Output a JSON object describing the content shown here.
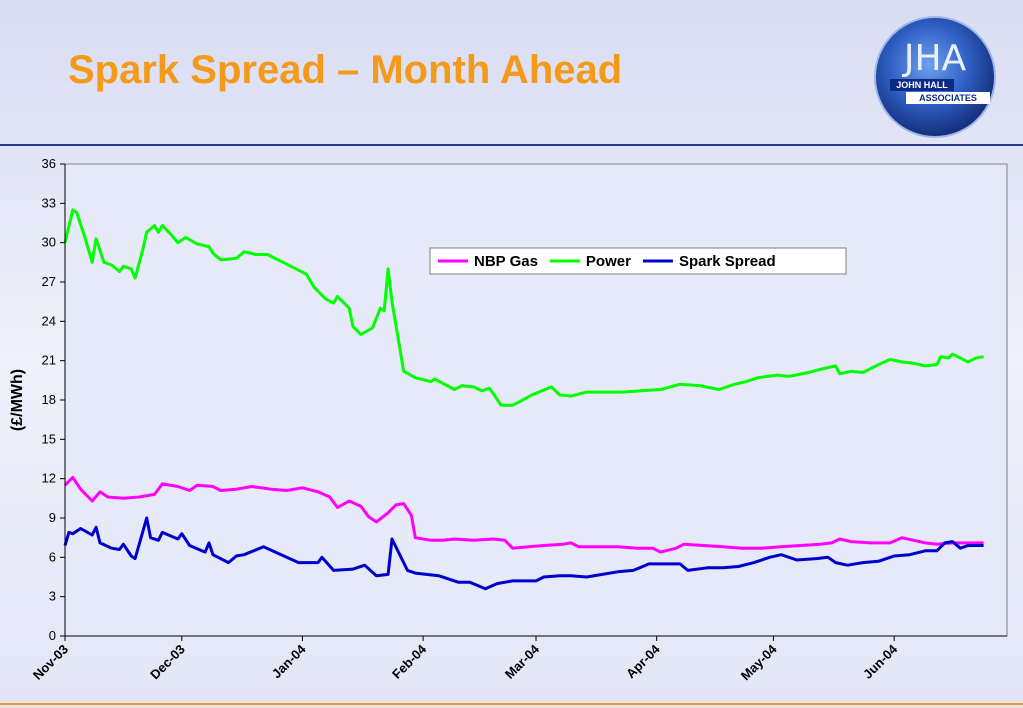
{
  "title": "Spark Spread – Month Ahead",
  "logo": {
    "line1": "JHA",
    "line2": "JOHN HALL",
    "line3": "ASSOCIATES"
  },
  "colors": {
    "title": "#f5991a",
    "rule": "#2c3a8a",
    "gas": "#ff00ff",
    "power": "#00ff00",
    "spark": "#0000cc"
  },
  "chart_data": {
    "type": "line",
    "title": "",
    "xlabel": "",
    "ylabel": "(£/MWh)",
    "ylim": [
      0,
      36
    ],
    "yticks": [
      0,
      3,
      6,
      9,
      12,
      15,
      18,
      21,
      24,
      27,
      30,
      33,
      36
    ],
    "xlim": [
      "2003-11-01",
      "2004-06-30"
    ],
    "xticks": [
      {
        "date": "2003-11-01",
        "label": "Nov-03"
      },
      {
        "date": "2003-12-01",
        "label": "Dec-03"
      },
      {
        "date": "2004-01-01",
        "label": "Jan-04"
      },
      {
        "date": "2004-02-01",
        "label": "Feb-04"
      },
      {
        "date": "2004-03-01",
        "label": "Mar-04"
      },
      {
        "date": "2004-04-01",
        "label": "Apr-04"
      },
      {
        "date": "2004-05-01",
        "label": "May-04"
      },
      {
        "date": "2004-06-01",
        "label": "Jun-04"
      }
    ],
    "legend": "top-right",
    "grid": false,
    "series": [
      {
        "name": "NBP Gas",
        "color": "#ff00ff",
        "points": [
          [
            "2003-11-01",
            11.5
          ],
          [
            "2003-11-03",
            12.1
          ],
          [
            "2003-11-05",
            11.2
          ],
          [
            "2003-11-08",
            10.3
          ],
          [
            "2003-11-10",
            11.0
          ],
          [
            "2003-11-12",
            10.6
          ],
          [
            "2003-11-16",
            10.5
          ],
          [
            "2003-11-20",
            10.6
          ],
          [
            "2003-11-24",
            10.8
          ],
          [
            "2003-11-26",
            11.6
          ],
          [
            "2003-11-30",
            11.4
          ],
          [
            "2003-12-03",
            11.1
          ],
          [
            "2003-12-05",
            11.5
          ],
          [
            "2003-12-09",
            11.4
          ],
          [
            "2003-12-11",
            11.1
          ],
          [
            "2003-12-15",
            11.2
          ],
          [
            "2003-12-19",
            11.4
          ],
          [
            "2003-12-24",
            11.2
          ],
          [
            "2003-12-28",
            11.1
          ],
          [
            "2004-01-01",
            11.3
          ],
          [
            "2004-01-05",
            11.0
          ],
          [
            "2004-01-08",
            10.6
          ],
          [
            "2004-01-10",
            9.8
          ],
          [
            "2004-01-13",
            10.3
          ],
          [
            "2004-01-16",
            9.9
          ],
          [
            "2004-01-18",
            9.1
          ],
          [
            "2004-01-20",
            8.7
          ],
          [
            "2004-01-23",
            9.4
          ],
          [
            "2004-01-25",
            10.0
          ],
          [
            "2004-01-27",
            10.1
          ],
          [
            "2004-01-29",
            9.2
          ],
          [
            "2004-01-30",
            7.5
          ],
          [
            "2004-02-03",
            7.3
          ],
          [
            "2004-02-06",
            7.3
          ],
          [
            "2004-02-09",
            7.4
          ],
          [
            "2004-02-14",
            7.3
          ],
          [
            "2004-02-19",
            7.4
          ],
          [
            "2004-02-22",
            7.3
          ],
          [
            "2004-02-24",
            6.7
          ],
          [
            "2004-02-28",
            6.8
          ],
          [
            "2004-03-03",
            6.9
          ],
          [
            "2004-03-08",
            7.0
          ],
          [
            "2004-03-10",
            7.1
          ],
          [
            "2004-03-12",
            6.8
          ],
          [
            "2004-03-17",
            6.8
          ],
          [
            "2004-03-22",
            6.8
          ],
          [
            "2004-03-27",
            6.7
          ],
          [
            "2004-03-31",
            6.7
          ],
          [
            "2004-04-02",
            6.4
          ],
          [
            "2004-04-06",
            6.7
          ],
          [
            "2004-04-08",
            7.0
          ],
          [
            "2004-04-13",
            6.9
          ],
          [
            "2004-04-18",
            6.8
          ],
          [
            "2004-04-23",
            6.7
          ],
          [
            "2004-04-28",
            6.7
          ],
          [
            "2004-05-03",
            6.8
          ],
          [
            "2004-05-08",
            6.9
          ],
          [
            "2004-05-13",
            7.0
          ],
          [
            "2004-05-16",
            7.1
          ],
          [
            "2004-05-18",
            7.4
          ],
          [
            "2004-05-21",
            7.2
          ],
          [
            "2004-05-26",
            7.1
          ],
          [
            "2004-05-31",
            7.1
          ],
          [
            "2004-06-03",
            7.5
          ],
          [
            "2004-06-06",
            7.3
          ],
          [
            "2004-06-09",
            7.1
          ],
          [
            "2004-06-12",
            7.0
          ],
          [
            "2004-06-16",
            7.1
          ],
          [
            "2004-06-20",
            7.1
          ],
          [
            "2004-06-24",
            7.1
          ]
        ]
      },
      {
        "name": "Power",
        "color": "#00ff00",
        "points": [
          [
            "2003-11-01",
            30.0
          ],
          [
            "2003-11-03",
            32.5
          ],
          [
            "2003-11-04",
            32.3
          ],
          [
            "2003-11-06",
            30.5
          ],
          [
            "2003-11-08",
            28.5
          ],
          [
            "2003-11-09",
            30.3
          ],
          [
            "2003-11-11",
            28.5
          ],
          [
            "2003-11-13",
            28.3
          ],
          [
            "2003-11-15",
            27.8
          ],
          [
            "2003-11-16",
            28.2
          ],
          [
            "2003-11-18",
            28.0
          ],
          [
            "2003-11-19",
            27.3
          ],
          [
            "2003-11-21",
            29.5
          ],
          [
            "2003-11-22",
            30.8
          ],
          [
            "2003-11-24",
            31.3
          ],
          [
            "2003-11-25",
            30.8
          ],
          [
            "2003-11-26",
            31.3
          ],
          [
            "2003-11-28",
            30.7
          ],
          [
            "2003-11-30",
            30.0
          ],
          [
            "2003-12-02",
            30.4
          ],
          [
            "2003-12-05",
            29.9
          ],
          [
            "2003-12-08",
            29.7
          ],
          [
            "2003-12-09",
            29.2
          ],
          [
            "2003-12-11",
            28.7
          ],
          [
            "2003-12-15",
            28.8
          ],
          [
            "2003-12-17",
            29.3
          ],
          [
            "2003-12-20",
            29.1
          ],
          [
            "2003-12-23",
            29.1
          ],
          [
            "2003-12-27",
            28.5
          ],
          [
            "2003-12-31",
            27.9
          ],
          [
            "2004-01-02",
            27.6
          ],
          [
            "2004-01-04",
            26.6
          ],
          [
            "2004-01-07",
            25.7
          ],
          [
            "2004-01-09",
            25.4
          ],
          [
            "2004-01-10",
            25.9
          ],
          [
            "2004-01-13",
            25.0
          ],
          [
            "2004-01-14",
            23.6
          ],
          [
            "2004-01-16",
            23.0
          ],
          [
            "2004-01-19",
            23.5
          ],
          [
            "2004-01-21",
            25.0
          ],
          [
            "2004-01-22",
            24.8
          ],
          [
            "2004-01-23",
            28.0
          ],
          [
            "2004-01-24",
            25.5
          ],
          [
            "2004-01-27",
            20.2
          ],
          [
            "2004-01-30",
            19.7
          ],
          [
            "2004-02-03",
            19.4
          ],
          [
            "2004-02-04",
            19.6
          ],
          [
            "2004-02-09",
            18.8
          ],
          [
            "2004-02-11",
            19.1
          ],
          [
            "2004-02-14",
            19.0
          ],
          [
            "2004-02-16",
            18.7
          ],
          [
            "2004-02-18",
            18.9
          ],
          [
            "2004-02-19",
            18.5
          ],
          [
            "2004-02-21",
            17.6
          ],
          [
            "2004-02-24",
            17.6
          ],
          [
            "2004-02-26",
            17.9
          ],
          [
            "2004-02-29",
            18.4
          ],
          [
            "2004-03-05",
            19.0
          ],
          [
            "2004-03-07",
            18.4
          ],
          [
            "2004-03-10",
            18.3
          ],
          [
            "2004-03-14",
            18.6
          ],
          [
            "2004-03-18",
            18.6
          ],
          [
            "2004-03-23",
            18.6
          ],
          [
            "2004-03-28",
            18.7
          ],
          [
            "2004-04-02",
            18.8
          ],
          [
            "2004-04-07",
            19.2
          ],
          [
            "2004-04-12",
            19.1
          ],
          [
            "2004-04-17",
            18.8
          ],
          [
            "2004-04-21",
            19.2
          ],
          [
            "2004-04-24",
            19.4
          ],
          [
            "2004-04-27",
            19.7
          ],
          [
            "2004-05-02",
            19.9
          ],
          [
            "2004-05-05",
            19.8
          ],
          [
            "2004-05-10",
            20.1
          ],
          [
            "2004-05-14",
            20.4
          ],
          [
            "2004-05-17",
            20.6
          ],
          [
            "2004-05-18",
            20.0
          ],
          [
            "2004-05-21",
            20.2
          ],
          [
            "2004-05-24",
            20.1
          ],
          [
            "2004-05-28",
            20.7
          ],
          [
            "2004-05-31",
            21.1
          ],
          [
            "2004-06-03",
            20.9
          ],
          [
            "2004-06-06",
            20.8
          ],
          [
            "2004-06-09",
            20.6
          ],
          [
            "2004-06-12",
            20.7
          ],
          [
            "2004-06-13",
            21.3
          ],
          [
            "2004-06-15",
            21.2
          ],
          [
            "2004-06-16",
            21.5
          ],
          [
            "2004-06-18",
            21.2
          ],
          [
            "2004-06-20",
            20.9
          ],
          [
            "2004-06-22",
            21.2
          ],
          [
            "2004-06-24",
            21.3
          ]
        ]
      },
      {
        "name": "Spark Spread",
        "color": "#0000cc",
        "points": [
          [
            "2003-11-01",
            6.9
          ],
          [
            "2003-11-02",
            7.9
          ],
          [
            "2003-11-03",
            7.8
          ],
          [
            "2003-11-05",
            8.2
          ],
          [
            "2003-11-08",
            7.7
          ],
          [
            "2003-11-09",
            8.3
          ],
          [
            "2003-11-10",
            7.1
          ],
          [
            "2003-11-13",
            6.7
          ],
          [
            "2003-11-15",
            6.6
          ],
          [
            "2003-11-16",
            7.0
          ],
          [
            "2003-11-18",
            6.1
          ],
          [
            "2003-11-19",
            5.9
          ],
          [
            "2003-11-22",
            9.0
          ],
          [
            "2003-11-23",
            7.5
          ],
          [
            "2003-11-25",
            7.3
          ],
          [
            "2003-11-26",
            7.9
          ],
          [
            "2003-11-30",
            7.4
          ],
          [
            "2003-12-01",
            7.8
          ],
          [
            "2003-12-03",
            6.9
          ],
          [
            "2003-12-07",
            6.4
          ],
          [
            "2003-12-08",
            7.1
          ],
          [
            "2003-12-09",
            6.2
          ],
          [
            "2003-12-13",
            5.6
          ],
          [
            "2003-12-15",
            6.1
          ],
          [
            "2003-12-17",
            6.2
          ],
          [
            "2003-12-22",
            6.8
          ],
          [
            "2003-12-31",
            5.6
          ],
          [
            "2004-01-05",
            5.6
          ],
          [
            "2004-01-06",
            6.0
          ],
          [
            "2004-01-09",
            5.0
          ],
          [
            "2004-01-14",
            5.1
          ],
          [
            "2004-01-17",
            5.4
          ],
          [
            "2004-01-20",
            4.6
          ],
          [
            "2004-01-23",
            4.7
          ],
          [
            "2004-01-24",
            7.4
          ],
          [
            "2004-01-28",
            5.0
          ],
          [
            "2004-01-30",
            4.8
          ],
          [
            "2004-02-05",
            4.6
          ],
          [
            "2004-02-10",
            4.1
          ],
          [
            "2004-02-13",
            4.1
          ],
          [
            "2004-02-17",
            3.6
          ],
          [
            "2004-02-20",
            4.0
          ],
          [
            "2004-02-24",
            4.2
          ],
          [
            "2004-03-01",
            4.2
          ],
          [
            "2004-03-03",
            4.5
          ],
          [
            "2004-03-07",
            4.6
          ],
          [
            "2004-03-10",
            4.6
          ],
          [
            "2004-03-14",
            4.5
          ],
          [
            "2004-03-18",
            4.7
          ],
          [
            "2004-03-22",
            4.9
          ],
          [
            "2004-03-26",
            5.0
          ],
          [
            "2004-03-30",
            5.5
          ],
          [
            "2004-04-07",
            5.5
          ],
          [
            "2004-04-09",
            5.0
          ],
          [
            "2004-04-14",
            5.2
          ],
          [
            "2004-04-18",
            5.2
          ],
          [
            "2004-04-22",
            5.3
          ],
          [
            "2004-04-26",
            5.6
          ],
          [
            "2004-04-30",
            6.0
          ],
          [
            "2004-05-03",
            6.2
          ],
          [
            "2004-05-07",
            5.8
          ],
          [
            "2004-05-12",
            5.9
          ],
          [
            "2004-05-15",
            6.0
          ],
          [
            "2004-05-17",
            5.6
          ],
          [
            "2004-05-20",
            5.4
          ],
          [
            "2004-05-24",
            5.6
          ],
          [
            "2004-05-28",
            5.7
          ],
          [
            "2004-06-01",
            6.1
          ],
          [
            "2004-06-05",
            6.2
          ],
          [
            "2004-06-09",
            6.5
          ],
          [
            "2004-06-12",
            6.5
          ],
          [
            "2004-06-14",
            7.1
          ],
          [
            "2004-06-16",
            7.2
          ],
          [
            "2004-06-18",
            6.7
          ],
          [
            "2004-06-20",
            6.9
          ],
          [
            "2004-06-24",
            6.9
          ]
        ]
      }
    ]
  }
}
